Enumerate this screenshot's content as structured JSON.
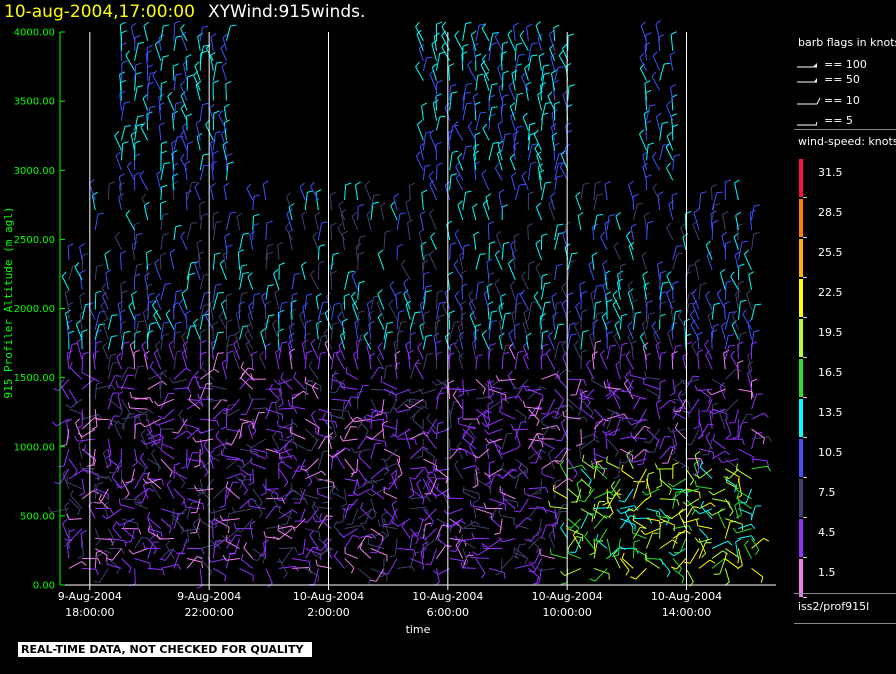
{
  "header": {
    "date": "10-aug-2004,17:00:00",
    "title": "XYWind:915winds."
  },
  "chart_data": {
    "type": "wind-barb time-height plot",
    "ylabel": "915 Profiler Altitude (m agl)",
    "xlabel": "time",
    "ylim": [
      0,
      4000
    ],
    "y_ticks": [
      "0.00",
      "500.00",
      "1000.00",
      "1500.00",
      "2000.00",
      "2500.00",
      "3000.00",
      "3500.00",
      "4000.00"
    ],
    "x_ticks": [
      {
        "date": "9-Aug-2004",
        "time": "18:00:00"
      },
      {
        "date": "9-Aug-2004",
        "time": "22:00:00"
      },
      {
        "date": "10-Aug-2004",
        "time": "2:00:00"
      },
      {
        "date": "10-Aug-2004",
        "time": "6:00:00"
      },
      {
        "date": "10-Aug-2004",
        "time": "10:00:00"
      },
      {
        "date": "10-Aug-2004",
        "time": "14:00:00"
      }
    ],
    "time_range_hours_from_first_tick": [
      -1.0,
      23.0
    ],
    "grid": "vertical lines at each x tick",
    "barb_legend": {
      "title": "barb flags in knots",
      "entries": [
        "== 100",
        "== 50",
        "== 10",
        "== 5"
      ]
    },
    "speed_legend": {
      "title": "wind-speed: knots",
      "levels": [
        {
          "value": "31.5",
          "color": "#ff1040"
        },
        {
          "value": "28.5",
          "color": "#ff8000"
        },
        {
          "value": "25.5",
          "color": "#ffb000"
        },
        {
          "value": "22.5",
          "color": "#ffff00"
        },
        {
          "value": "19.5",
          "color": "#b0ff30"
        },
        {
          "value": "16.5",
          "color": "#30e030"
        },
        {
          "value": "13.5",
          "color": "#00ffff"
        },
        {
          "value": "10.5",
          "color": "#4050ff"
        },
        {
          "value": "7.5",
          "color": "#404070"
        },
        {
          "value": "4.5",
          "color": "#9030ff"
        },
        {
          "value": "1.5",
          "color": "#ee80ee"
        }
      ]
    },
    "station": "iss2/prof915l"
  },
  "footer": {
    "qc_notice": "REAL-TIME DATA, NOT CHECKED FOR QUALITY"
  }
}
